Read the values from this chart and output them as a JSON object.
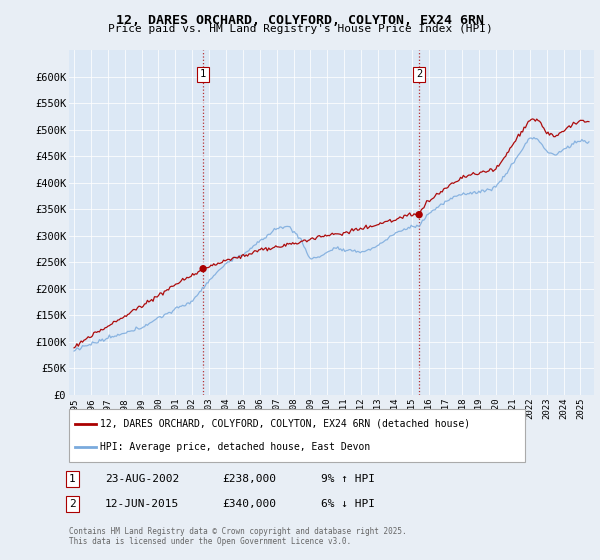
{
  "title": "12, DARES ORCHARD, COLYFORD, COLYTON, EX24 6RN",
  "subtitle": "Price paid vs. HM Land Registry's House Price Index (HPI)",
  "ylim": [
    0,
    650000
  ],
  "yticks": [
    0,
    50000,
    100000,
    150000,
    200000,
    250000,
    300000,
    350000,
    400000,
    450000,
    500000,
    550000,
    600000
  ],
  "ytick_labels": [
    "£0",
    "£50K",
    "£100K",
    "£150K",
    "£200K",
    "£250K",
    "£300K",
    "£350K",
    "£400K",
    "£450K",
    "£500K",
    "£550K",
    "£600K"
  ],
  "xlim_start": 1994.7,
  "xlim_end": 2025.8,
  "sale1_x": 2002.644,
  "sale1_y": 238000,
  "sale1_label": "1",
  "sale1_date": "23-AUG-2002",
  "sale1_price": "£238,000",
  "sale1_hpi": "9% ↑ HPI",
  "sale2_x": 2015.441,
  "sale2_y": 340000,
  "sale2_label": "2",
  "sale2_date": "12-JUN-2015",
  "sale2_price": "£340,000",
  "sale2_hpi": "6% ↓ HPI",
  "line_color_property": "#aa0000",
  "line_color_hpi": "#7aaadd",
  "legend_label_property": "12, DARES ORCHARD, COLYFORD, COLYTON, EX24 6RN (detached house)",
  "legend_label_hpi": "HPI: Average price, detached house, East Devon",
  "copyright": "Contains HM Land Registry data © Crown copyright and database right 2025.\nThis data is licensed under the Open Government Licence v3.0.",
  "background_color": "#e8eef5",
  "plot_bg_color": "#dce8f5"
}
